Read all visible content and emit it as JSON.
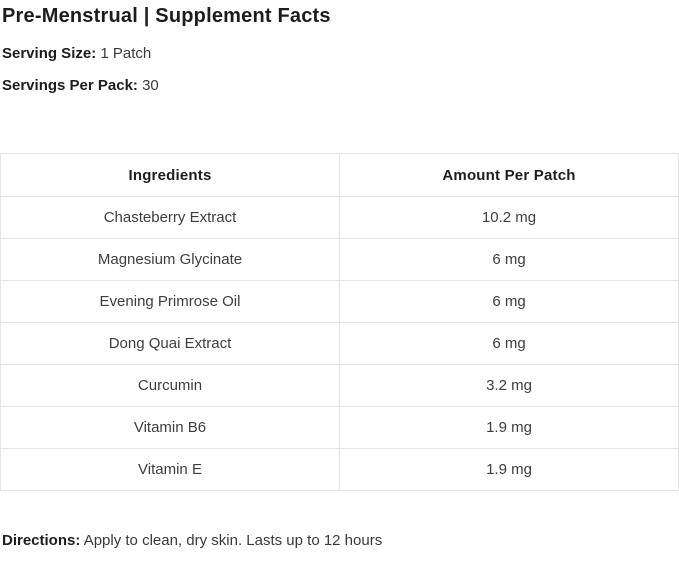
{
  "header": {
    "title": "Pre-Menstrual | Supplement Facts",
    "serving_size_label": "Serving Size:",
    "serving_size_value": " 1 Patch",
    "servings_per_pack_label": "Servings Per Pack:",
    "servings_per_pack_value": " 30"
  },
  "table": {
    "columns": [
      "Ingredients",
      "Amount Per Patch"
    ],
    "rows": [
      {
        "ingredient": "Chasteberry Extract",
        "amount": "10.2 mg"
      },
      {
        "ingredient": "Magnesium Glycinate",
        "amount": "6 mg"
      },
      {
        "ingredient": "Evening Primrose Oil",
        "amount": "6 mg"
      },
      {
        "ingredient": "Dong Quai Extract",
        "amount": "6 mg"
      },
      {
        "ingredient": "Curcumin",
        "amount": "3.2 mg"
      },
      {
        "ingredient": "Vitamin B6",
        "amount": "1.9 mg"
      },
      {
        "ingredient": "Vitamin E",
        "amount": "1.9 mg"
      }
    ]
  },
  "directions": {
    "label": "Directions:",
    "text": " Apply to clean, dry skin. Lasts up to 12 hours"
  },
  "colors": {
    "heading_text": "#1d1d1d",
    "body_text": "#3d3d3d",
    "table_border": "#e4e4e4",
    "background": "#ffffff"
  }
}
